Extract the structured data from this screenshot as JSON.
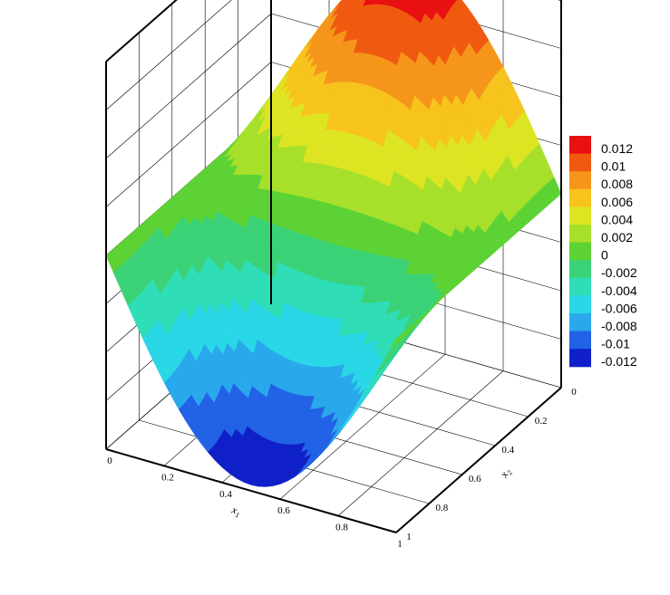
{
  "chart_data": {
    "type": "surface",
    "title": "",
    "function": "z = 0.0126 * sin(pi*x1) * sin(pi*(x2 - 0.5)) shape: positive peak near x1=0.5,x2=0.25 side; negative trough on opposite side",
    "x1": {
      "label": "x",
      "label_sub": "1",
      "range": [
        0,
        1
      ],
      "ticks": [
        "0",
        "0.2",
        "0.4",
        "0.6",
        "0.8",
        "1"
      ]
    },
    "x2": {
      "label": "x",
      "label_sub": "2",
      "range": [
        0,
        1
      ],
      "ticks": [
        "0",
        "0.2",
        "0.4",
        "0.6",
        "0.8",
        "1"
      ]
    },
    "z_range": [
      -0.013,
      0.013
    ],
    "peak": 0.0126,
    "trough": -0.0126,
    "legend": {
      "position": "right",
      "levels": [
        "0.012",
        "0.01",
        "0.008",
        "0.006",
        "0.004",
        "0.002",
        "0",
        "-0.002",
        "-0.004",
        "-0.006",
        "-0.008",
        "-0.01",
        "-0.012"
      ],
      "colors": [
        "#e81010",
        "#f05a10",
        "#f5961a",
        "#f7c41d",
        "#dde522",
        "#a6e02a",
        "#5dd234",
        "#3bd277",
        "#2fddb6",
        "#2ad7e6",
        "#2aa8ec",
        "#2262e6",
        "#1020c8"
      ]
    },
    "grid": true
  }
}
